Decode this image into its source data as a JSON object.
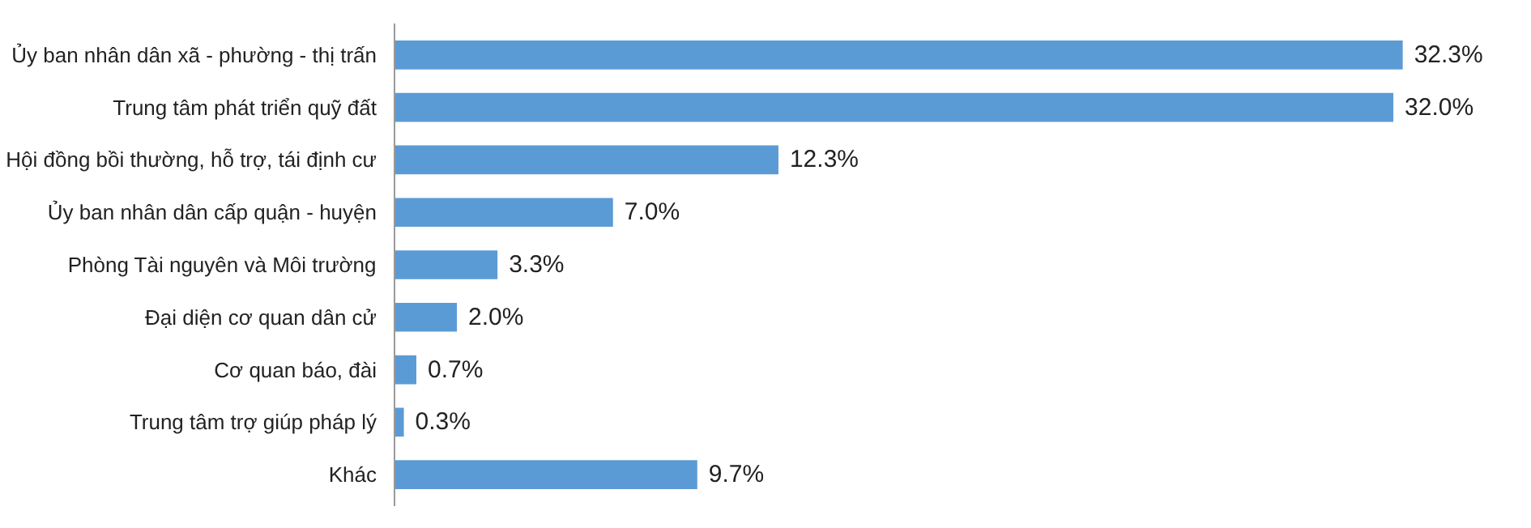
{
  "chart_data": {
    "type": "bar",
    "orientation": "horizontal",
    "categories": [
      "Ủy ban nhân dân xã - phường - thị trấn",
      "Trung tâm phát triển quỹ đất",
      "Hội đồng bồi thường, hỗ trợ, tái định cư",
      "Ủy ban nhân dân cấp quận - huyện",
      "Phòng Tài nguyên và Môi trường",
      "Đại diện cơ quan dân cử",
      "Cơ quan báo, đài",
      "Trung tâm trợ giúp pháp lý",
      "Khác"
    ],
    "values": [
      32.3,
      32.0,
      12.3,
      7.0,
      3.3,
      2.0,
      0.7,
      0.3,
      9.7
    ],
    "value_labels": [
      "32.3%",
      "32.0%",
      "12.3%",
      "7.0%",
      "3.3%",
      "2.0%",
      "0.7%",
      "0.3%",
      "9.7%"
    ],
    "color": "#5b9bd5",
    "grid": false,
    "tick_labels": "y"
  }
}
